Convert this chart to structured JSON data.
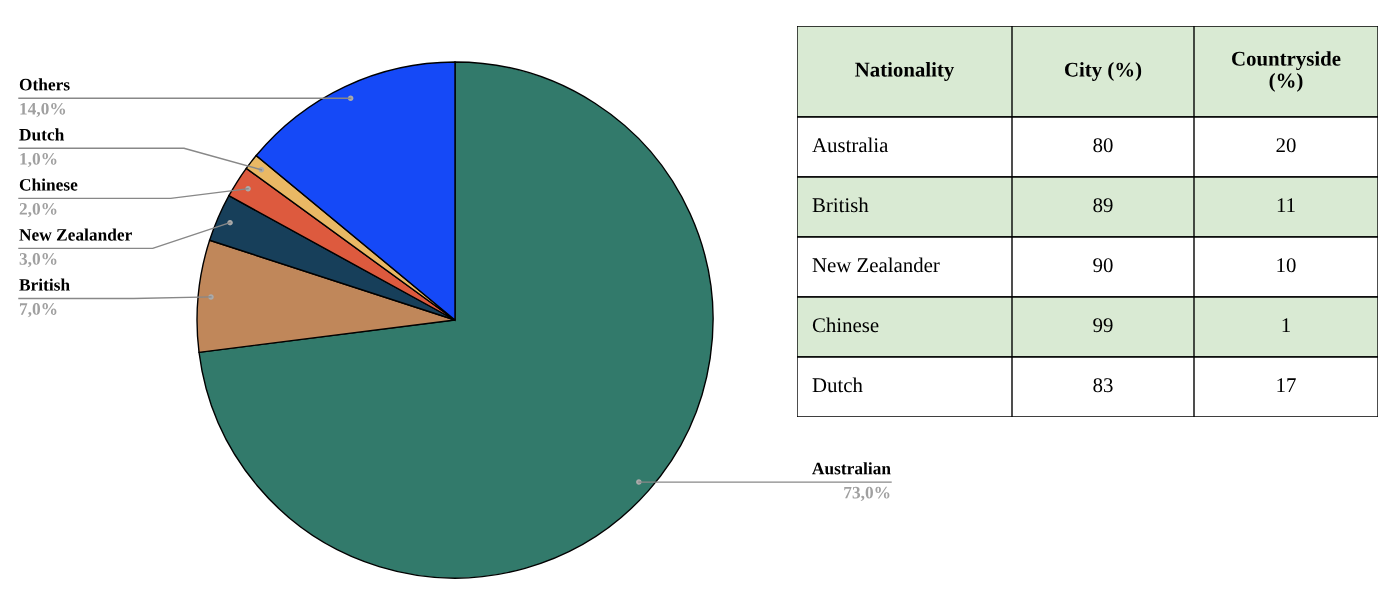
{
  "chart_data": [
    {
      "type": "pie",
      "categories": [
        "Australian",
        "British",
        "New Zealander",
        "Chinese",
        "Dutch",
        "Others"
      ],
      "values": [
        73,
        7,
        3,
        2,
        1,
        14
      ],
      "colors": [
        "#327a6b",
        "#c0875a",
        "#173f5a",
        "#dd5a3e",
        "#e9b864",
        "#1549f7"
      ],
      "value_labels": [
        "73,0%",
        "7,0%",
        "3,0%",
        "2,0%",
        "1,0%",
        "14,0%"
      ]
    },
    {
      "type": "heatmap",
      "ylabel": "Nationality",
      "categories": [
        "City (%)",
        "Countryside\n(%)"
      ],
      "y_categories": [
        "Australia",
        "British",
        "New Zealander",
        "Chinese",
        "Dutch"
      ],
      "cells": [
        [
          80,
          20
        ],
        [
          89,
          11
        ],
        [
          90,
          10
        ],
        [
          99,
          1
        ],
        [
          83,
          17
        ]
      ],
      "colors": [
        "#d9ead3",
        "#ffffff"
      ],
      "data_labels": true
    }
  ]
}
